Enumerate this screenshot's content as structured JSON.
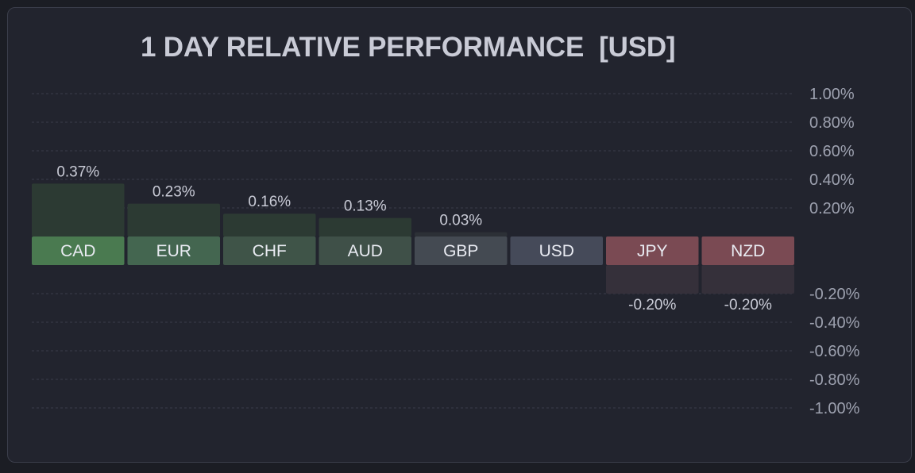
{
  "title": "1 DAY RELATIVE PERFORMANCE  [USD]",
  "colors": {
    "background": "#1b1d24",
    "panel": "#22242e",
    "positive_label": "#4a7a50",
    "neutral_label": "#454a59",
    "negative_label": "#7a4a53",
    "text": "#c9cbd6",
    "tick_text": "#9ea2b0"
  },
  "chart_data": {
    "type": "bar",
    "title": "1 DAY RELATIVE PERFORMANCE  [USD]",
    "categories": [
      "CAD",
      "EUR",
      "CHF",
      "AUD",
      "GBP",
      "USD",
      "JPY",
      "NZD"
    ],
    "values": [
      0.37,
      0.23,
      0.16,
      0.13,
      0.03,
      0.0,
      -0.2,
      -0.2
    ],
    "value_labels": [
      "0.37%",
      "0.23%",
      "0.16%",
      "0.13%",
      "0.03%",
      "",
      "-0.20%",
      "-0.20%"
    ],
    "unit": "%",
    "ylim": [
      -1.0,
      1.0
    ],
    "yticks_positive": [
      "1.00%",
      "0.80%",
      "0.60%",
      "0.40%",
      "0.20%"
    ],
    "yticks_negative": [
      "-0.20%",
      "-0.40%",
      "-0.60%",
      "-0.80%",
      "-1.00%"
    ],
    "grid": true,
    "legend": "none"
  }
}
